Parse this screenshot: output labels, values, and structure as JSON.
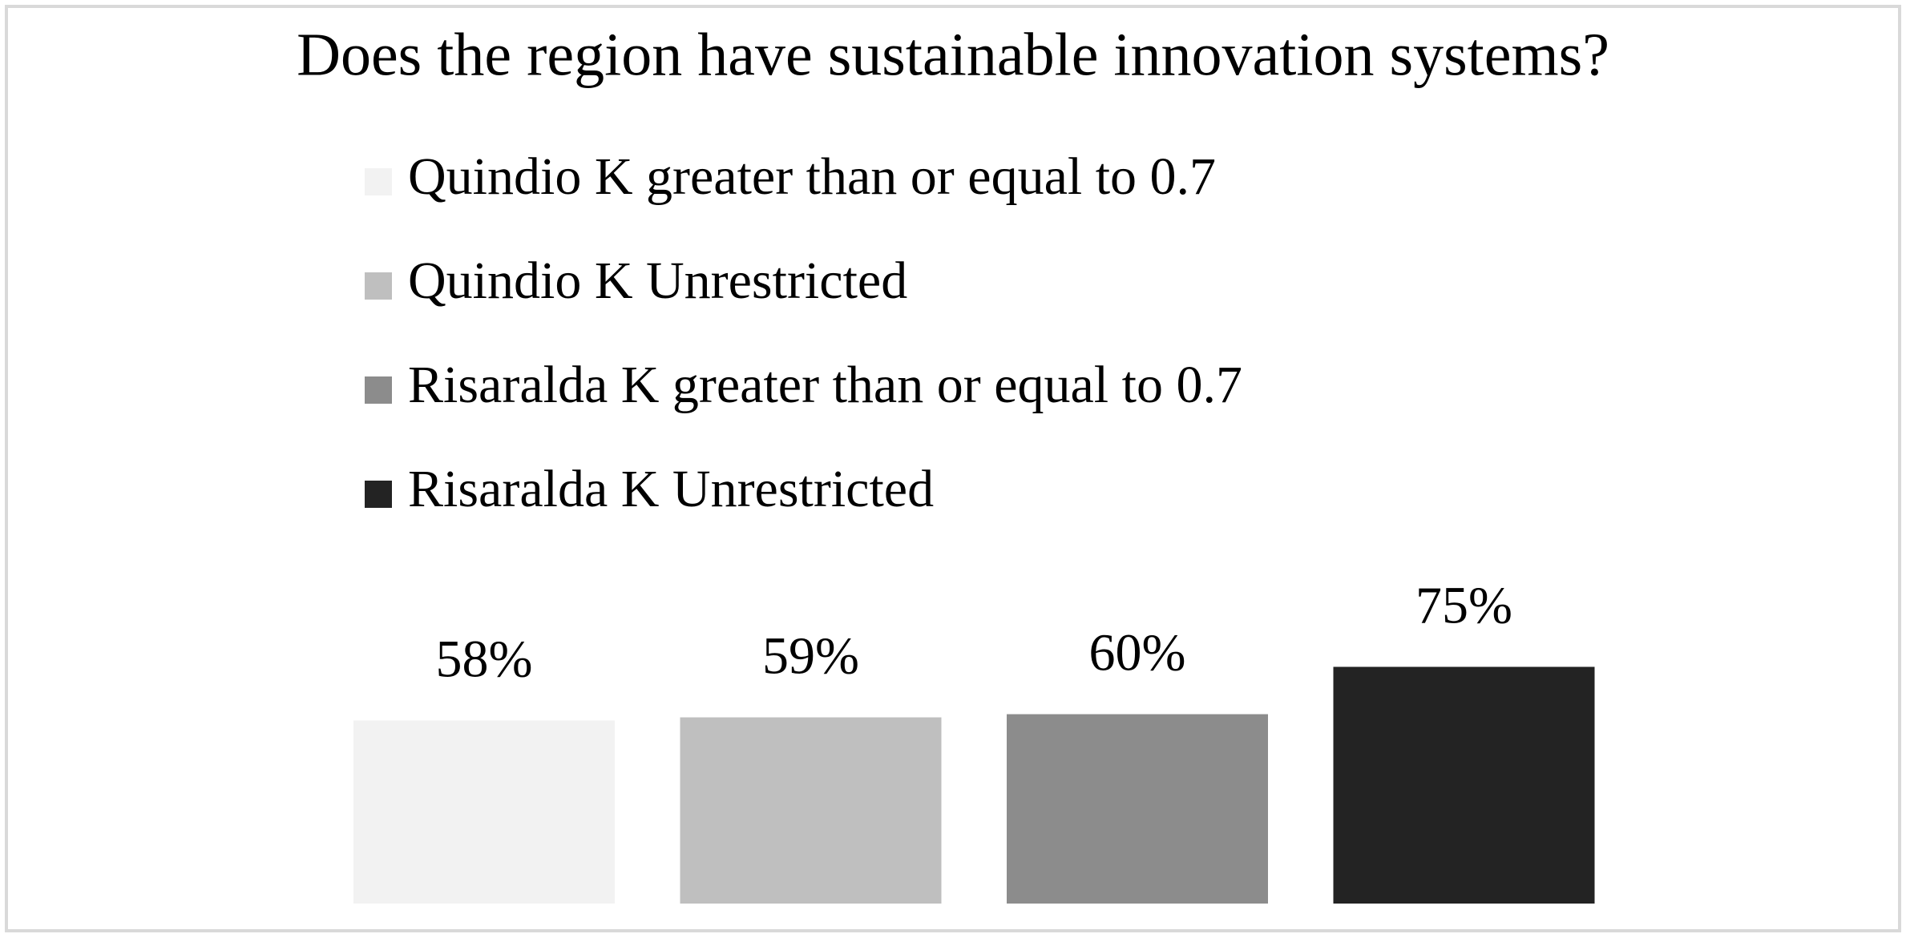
{
  "chart_data": {
    "type": "bar",
    "title": "Does the region have sustainable innovation systems?",
    "series": [
      {
        "name": "Quindio K greater than or equal to 0.7",
        "color": "#f2f2f2",
        "values": [
          58
        ],
        "value_labels": [
          "58%"
        ]
      },
      {
        "name": "Quindio K Unrestricted",
        "color": "#bfbfbf",
        "values": [
          59
        ],
        "value_labels": [
          "59%"
        ]
      },
      {
        "name": "Risaralda K greater than or equal to 0.7",
        "color": "#8c8c8c",
        "values": [
          60
        ],
        "value_labels": [
          "60%"
        ]
      },
      {
        "name": "Risaralda K Unrestricted",
        "color": "#232323",
        "values": [
          75
        ],
        "value_labels": [
          "75%"
        ]
      }
    ]
  }
}
